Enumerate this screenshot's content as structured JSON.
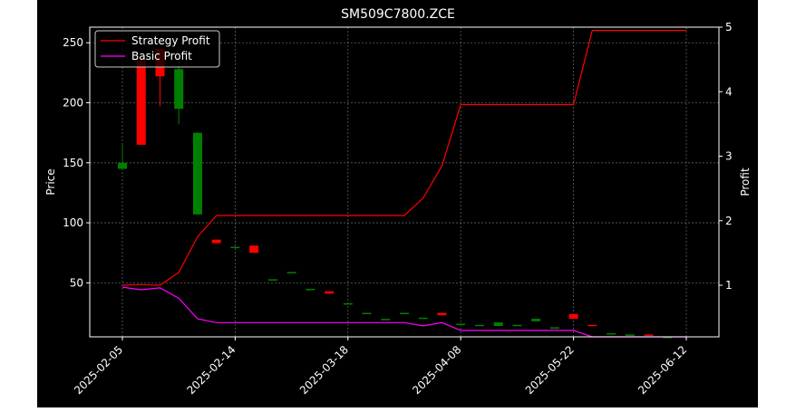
{
  "colors": {
    "background": "#000000",
    "outer_margin": "#ffffff",
    "text": "#ffffff",
    "grid": "#888888",
    "up_candle": "#008000",
    "down_candle": "#ff0000",
    "strategy_line": "#ff0000",
    "basic_line": "#ff00ff"
  },
  "chart_data": {
    "type": "candlestick+line",
    "title": "SM509C7800.ZCE",
    "ylabel_left": "Price",
    "ylabel_right": "Profit",
    "ylim_left": [
      5,
      263
    ],
    "ylim_right": [
      0.2,
      5.0
    ],
    "yticks_left": [
      "50",
      "100",
      "150",
      "200",
      "250"
    ],
    "yticks_right": [
      "1",
      "2",
      "3",
      "4",
      "5"
    ],
    "xticks": [
      "2025-02-05",
      "2025-02-14",
      "2025-03-18",
      "2025-04-08",
      "2025-05-22",
      "2025-06-12"
    ],
    "grid": true,
    "legend_position": "top-left",
    "candles": [
      {
        "open": 145,
        "close": 150,
        "high": 165,
        "low": 145
      },
      {
        "open": 235,
        "close": 165,
        "high": 235,
        "low": 165
      },
      {
        "open": 245,
        "close": 222,
        "high": 245,
        "low": 197
      },
      {
        "open": 195,
        "close": 228,
        "high": 240,
        "low": 182
      },
      {
        "open": 107,
        "close": 175,
        "high": 175,
        "low": 107
      },
      {
        "open": 86,
        "close": 83,
        "high": 86,
        "low": 83
      },
      {
        "open": 80,
        "close": 80,
        "high": 80,
        "low": 80
      },
      {
        "open": 81,
        "close": 75,
        "high": 81,
        "low": 75
      },
      {
        "open": 53,
        "close": 53,
        "high": 53,
        "low": 53
      },
      {
        "open": 59,
        "close": 59,
        "high": 59,
        "low": 59
      },
      {
        "open": 45,
        "close": 45,
        "high": 45,
        "low": 45
      },
      {
        "open": 43,
        "close": 41,
        "high": 43,
        "low": 41
      },
      {
        "open": 33,
        "close": 33,
        "high": 33,
        "low": 33
      },
      {
        "open": 25,
        "close": 25,
        "high": 25,
        "low": 25
      },
      {
        "open": 20,
        "close": 20,
        "high": 20,
        "low": 20
      },
      {
        "open": 25,
        "close": 25,
        "high": 25,
        "low": 25
      },
      {
        "open": 21,
        "close": 21,
        "high": 21,
        "low": 21
      },
      {
        "open": 25,
        "close": 23,
        "high": 25,
        "low": 23
      },
      {
        "open": 16,
        "close": 16,
        "high": 16,
        "low": 16
      },
      {
        "open": 15,
        "close": 15,
        "high": 15,
        "low": 15
      },
      {
        "open": 14,
        "close": 17,
        "high": 17,
        "low": 14
      },
      {
        "open": 15,
        "close": 15,
        "high": 15,
        "low": 15
      },
      {
        "open": 18,
        "close": 20,
        "high": 20,
        "low": 18
      },
      {
        "open": 13,
        "close": 13,
        "high": 13,
        "low": 13
      },
      {
        "open": 24,
        "close": 20,
        "high": 24,
        "low": 20
      },
      {
        "open": 15,
        "close": 14,
        "high": 15,
        "low": 14
      },
      {
        "open": 8,
        "close": 8,
        "high": 8,
        "low": 8
      },
      {
        "open": 7,
        "close": 7,
        "high": 7,
        "low": 7
      },
      {
        "open": 7,
        "close": 6,
        "high": 7,
        "low": 6
      },
      {
        "open": 5,
        "close": 5,
        "high": 5,
        "low": 5
      }
    ],
    "series": [
      {
        "name": "Strategy Profit",
        "values": [
          1.0,
          1.01,
          1.0,
          1.2,
          1.75,
          2.08,
          2.08,
          2.08,
          2.08,
          2.08,
          2.08,
          2.08,
          2.08,
          2.08,
          2.08,
          2.08,
          2.35,
          2.85,
          3.8,
          3.8,
          3.8,
          3.8,
          3.8,
          3.8,
          3.8,
          4.95,
          4.95,
          4.95,
          4.95,
          4.95,
          4.95
        ]
      },
      {
        "name": "Basic Profit",
        "values": [
          0.97,
          0.93,
          0.96,
          0.8,
          0.48,
          0.42,
          0.42,
          0.42,
          0.42,
          0.42,
          0.42,
          0.42,
          0.42,
          0.42,
          0.42,
          0.42,
          0.37,
          0.42,
          0.3,
          0.3,
          0.3,
          0.3,
          0.3,
          0.3,
          0.3,
          0.2,
          0.2,
          0.2,
          0.2,
          0.2,
          0.2
        ]
      }
    ]
  }
}
